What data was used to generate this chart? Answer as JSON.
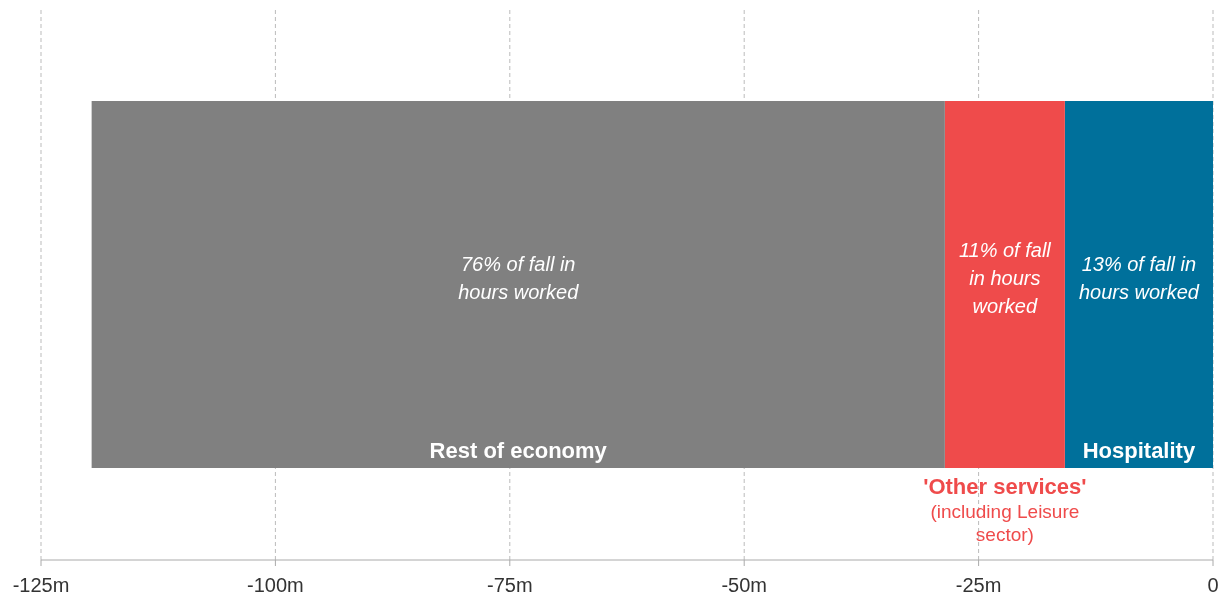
{
  "chart_data": {
    "type": "bar",
    "orientation": "horizontal",
    "stacked": true,
    "categories": [
      null
    ],
    "series": [
      {
        "name": "Hospitality",
        "color": "#00709b",
        "values": [
          -15.8
        ]
      },
      {
        "name": "'Other services'",
        "color": "#ef4b4b",
        "values": [
          -12.8
        ]
      },
      {
        "name": "Rest of economy",
        "color": "#808080",
        "values": [
          -91.0
        ]
      }
    ],
    "xlim": [
      -125,
      0
    ],
    "xticks": [
      {
        "value": -125,
        "label": "-125m"
      },
      {
        "value": -100,
        "label": "-100m"
      },
      {
        "value": -75,
        "label": "-75m"
      },
      {
        "value": -50,
        "label": "-50m"
      },
      {
        "value": -25,
        "label": "-25m"
      },
      0
    ],
    "grid": "x",
    "legend": false,
    "tick_labels": "x",
    "annotations": [
      "13% of  fall in hours worked",
      "11% of fall in hours worked",
      "76% of fall in hours worked",
      "(including Leisure sector)"
    ]
  }
}
